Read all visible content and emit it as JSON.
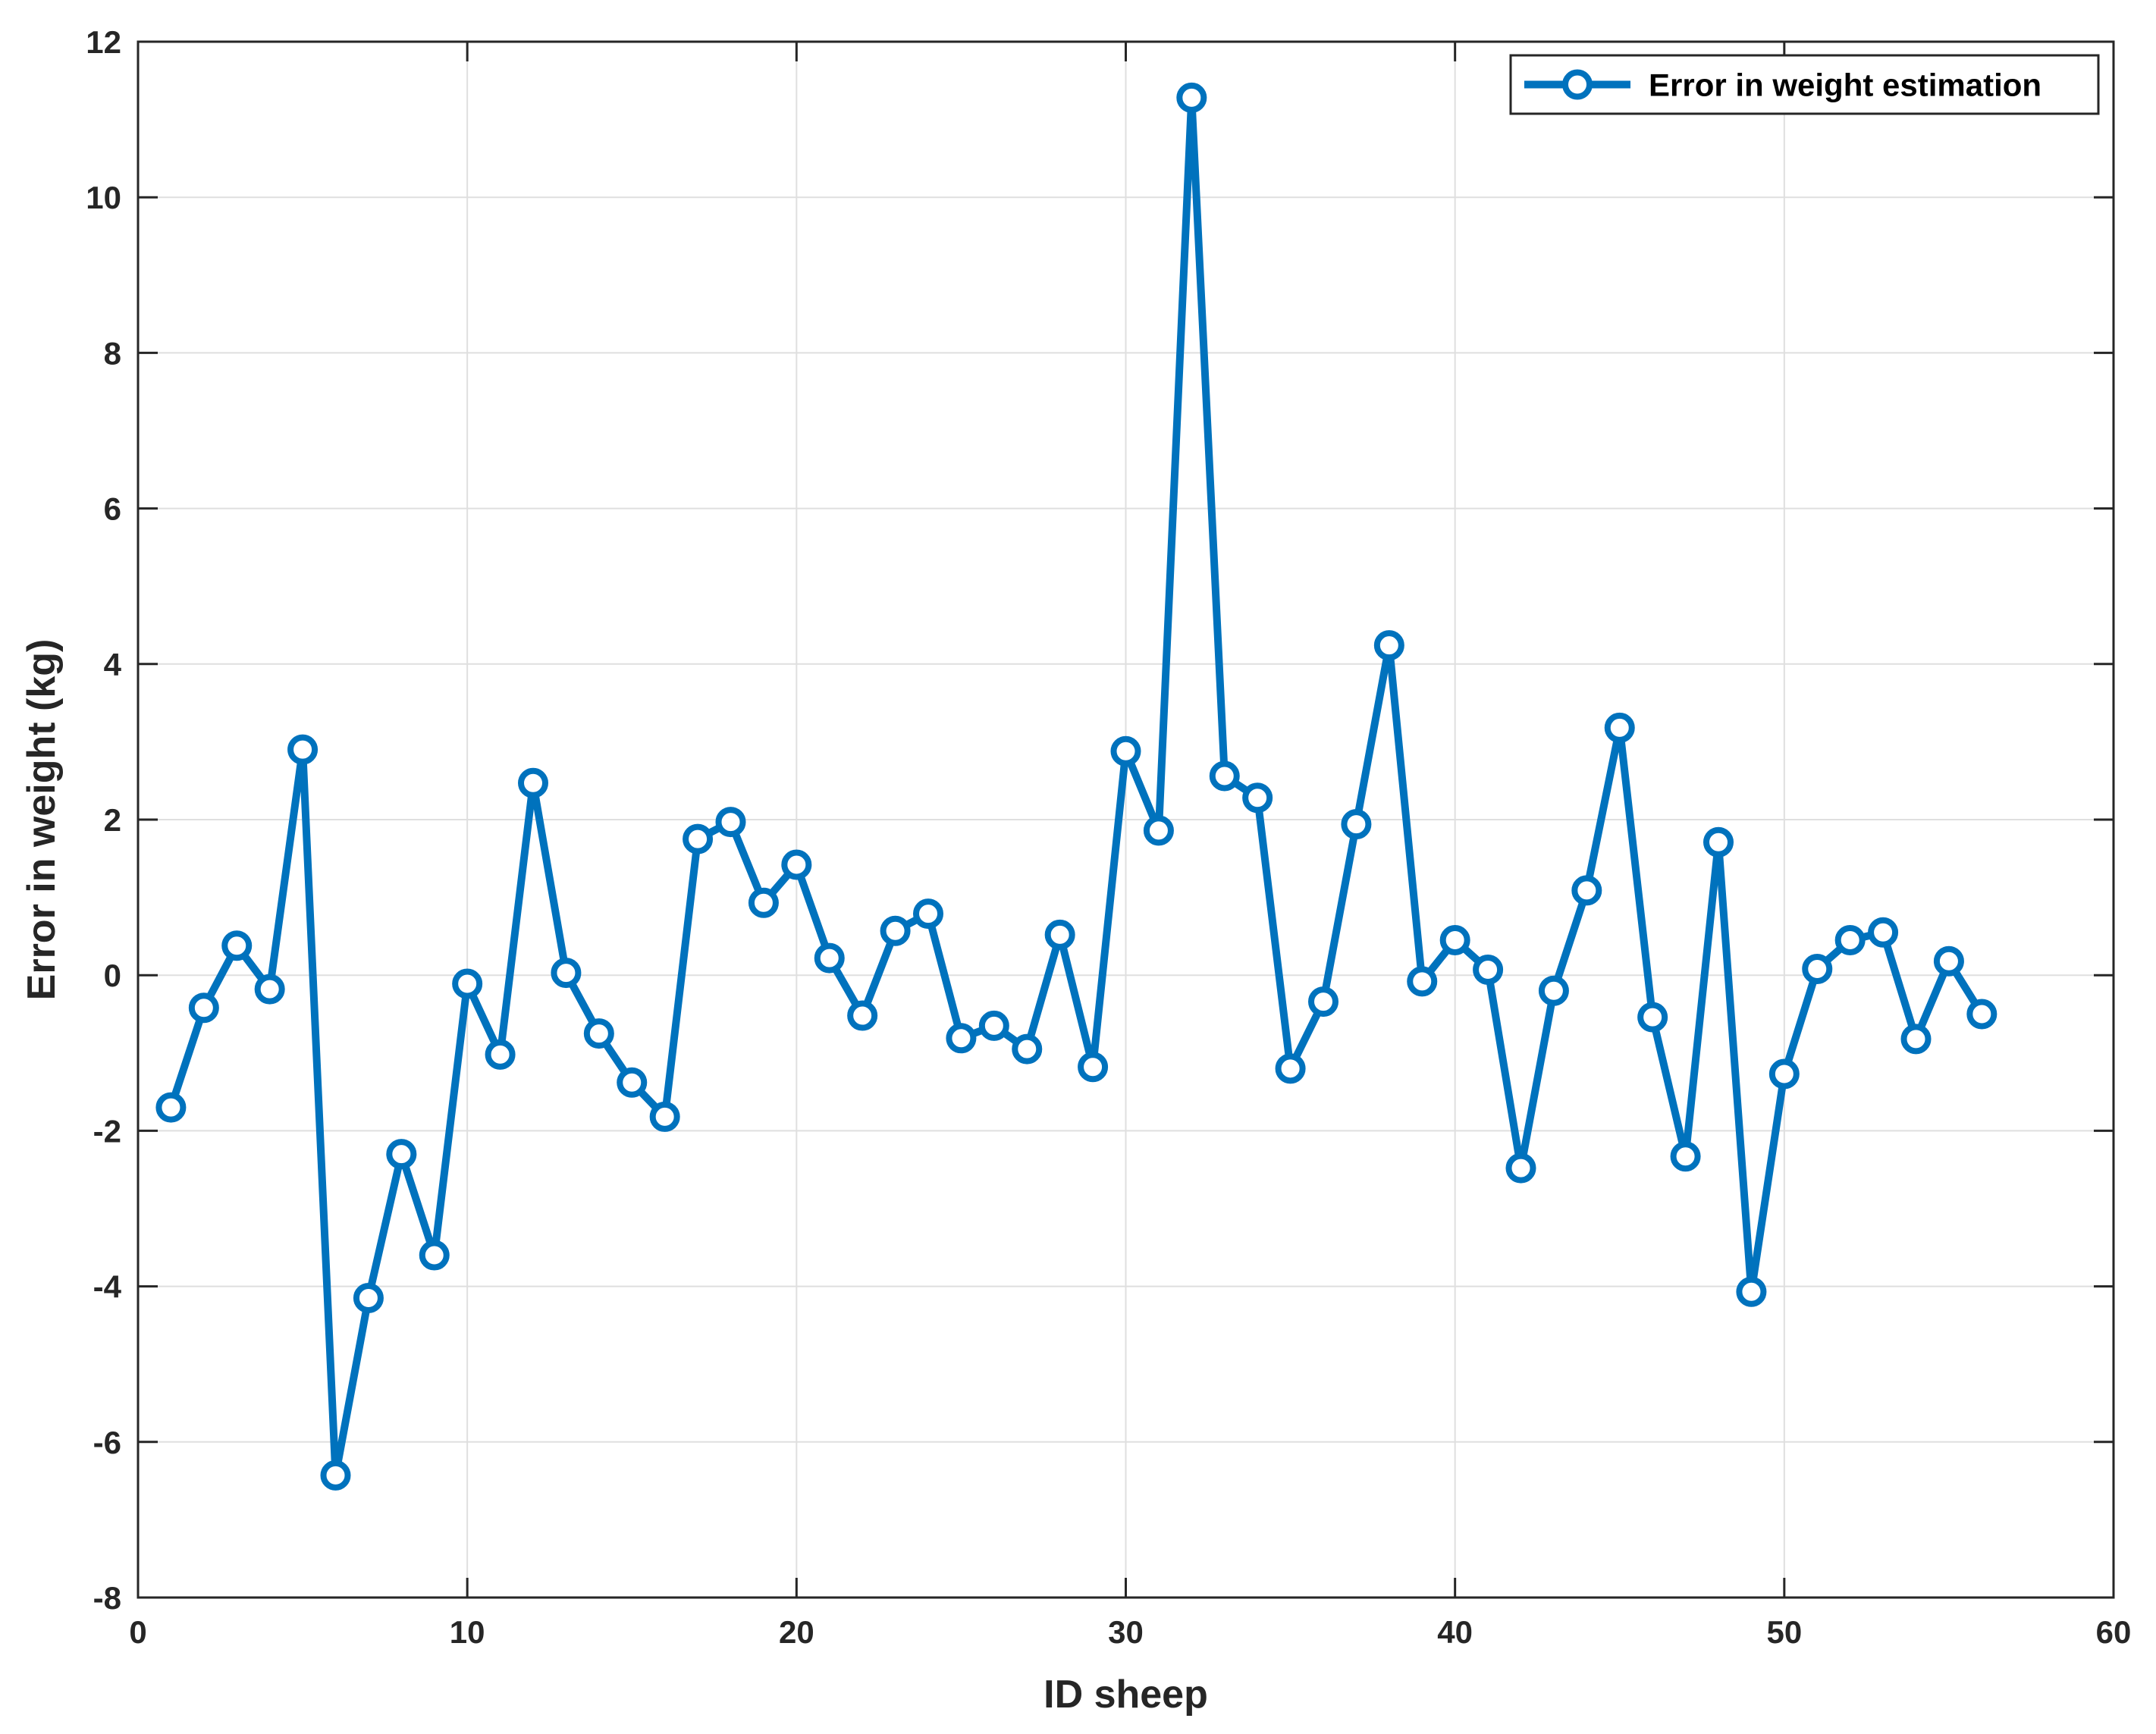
{
  "chart_data": {
    "type": "line",
    "title": "",
    "xlabel": "ID sheep",
    "ylabel": "Error in weight (kg)",
    "xlim": [
      0,
      60
    ],
    "ylim": [
      -8,
      12
    ],
    "xticks": [
      0,
      10,
      20,
      30,
      40,
      50,
      60
    ],
    "yticks": [
      -8,
      -6,
      -4,
      -2,
      0,
      2,
      4,
      6,
      8,
      10,
      12
    ],
    "grid": true,
    "legend_position": "top-right",
    "series": [
      {
        "name": "Error in weight estimation",
        "color": "#0072BD",
        "marker": "circle",
        "x": [
          1,
          2,
          3,
          4,
          5,
          6,
          7,
          8,
          9,
          10,
          11,
          12,
          13,
          14,
          15,
          16,
          17,
          18,
          19,
          20,
          21,
          22,
          23,
          24,
          25,
          26,
          27,
          28,
          29,
          30,
          31,
          32,
          33,
          34,
          35,
          36,
          37,
          38,
          39,
          40,
          41,
          42,
          43,
          44,
          45,
          46,
          47,
          48,
          49,
          50,
          51,
          52,
          53,
          54,
          55,
          56
        ],
        "values": [
          -1.7,
          -0.42,
          0.38,
          -0.18,
          2.9,
          -6.43,
          -4.15,
          -2.3,
          -3.6,
          -0.11,
          -1.02,
          2.47,
          0.03,
          -0.75,
          -1.38,
          -1.82,
          1.75,
          1.97,
          0.93,
          1.42,
          0.22,
          -0.52,
          0.57,
          0.79,
          -0.81,
          -0.65,
          -0.95,
          0.52,
          -1.18,
          2.88,
          1.86,
          11.28,
          2.56,
          2.28,
          -1.2,
          -0.34,
          1.94,
          4.24,
          -0.08,
          0.45,
          0.07,
          -2.48,
          -0.2,
          1.09,
          3.18,
          -0.54,
          -2.33,
          1.71,
          -4.07,
          -1.27,
          0.08,
          0.45,
          0.55,
          -0.82,
          0.18,
          -0.5
        ]
      }
    ]
  }
}
